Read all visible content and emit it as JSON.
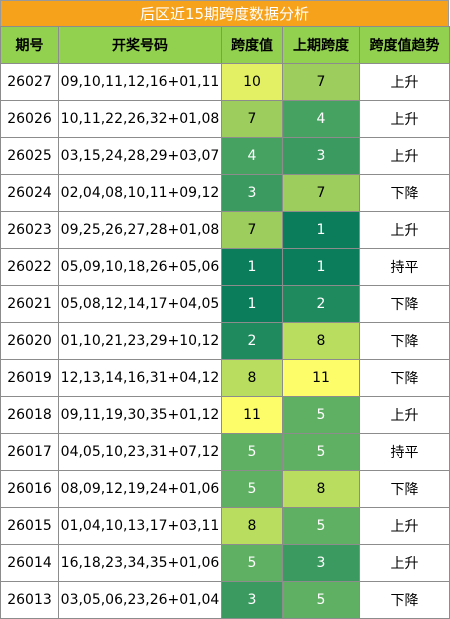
{
  "title": "后区近15期跨度数据分析",
  "headers": [
    "期号",
    "开奖号码",
    "跨度值",
    "上期跨度",
    "跨度值趋势"
  ],
  "rows": [
    {
      "issue": "26027",
      "numbers": "09,10,11,12,16+01,11",
      "span": "10",
      "prev_span": "7",
      "trend": "上升"
    },
    {
      "issue": "26026",
      "numbers": "10,11,22,26,32+01,08",
      "span": "7",
      "prev_span": "4",
      "trend": "上升"
    },
    {
      "issue": "26025",
      "numbers": "03,15,24,28,29+03,07",
      "span": "4",
      "prev_span": "3",
      "trend": "上升"
    },
    {
      "issue": "26024",
      "numbers": "02,04,08,10,11+09,12",
      "span": "3",
      "prev_span": "7",
      "trend": "下降"
    },
    {
      "issue": "26023",
      "numbers": "09,25,26,27,28+01,08",
      "span": "7",
      "prev_span": "1",
      "trend": "上升"
    },
    {
      "issue": "26022",
      "numbers": "05,09,10,18,26+05,06",
      "span": "1",
      "prev_span": "1",
      "trend": "持平"
    },
    {
      "issue": "26021",
      "numbers": "05,08,12,14,17+04,05",
      "span": "1",
      "prev_span": "2",
      "trend": "下降"
    },
    {
      "issue": "26020",
      "numbers": "01,10,21,23,29+10,12",
      "span": "2",
      "prev_span": "8",
      "trend": "下降"
    },
    {
      "issue": "26019",
      "numbers": "12,13,14,16,31+04,12",
      "span": "8",
      "prev_span": "11",
      "trend": "下降"
    },
    {
      "issue": "26018",
      "numbers": "09,11,19,30,35+01,12",
      "span": "11",
      "prev_span": "5",
      "trend": "上升"
    },
    {
      "issue": "26017",
      "numbers": "04,05,10,23,31+07,12",
      "span": "5",
      "prev_span": "5",
      "trend": "持平"
    },
    {
      "issue": "26016",
      "numbers": "08,09,12,19,24+01,06",
      "span": "5",
      "prev_span": "8",
      "trend": "下降"
    },
    {
      "issue": "26015",
      "numbers": "01,04,10,13,17+03,11",
      "span": "8",
      "prev_span": "5",
      "trend": "上升"
    },
    {
      "issue": "26014",
      "numbers": "16,18,23,34,35+01,06",
      "span": "5",
      "prev_span": "3",
      "trend": "上升"
    },
    {
      "issue": "26013",
      "numbers": "03,05,06,23,26+01,04",
      "span": "3",
      "prev_span": "5",
      "trend": "下降"
    }
  ],
  "colors": {
    "title_bg": "#f7a21b",
    "header_bg": "#92d050",
    "span_scale": {
      "1": "#0b7d5b",
      "2": "#1f8a5e",
      "3": "#3a9a60",
      "4": "#45a261",
      "5": "#5fb063",
      "7": "#9dcd5c",
      "8": "#b9dd5e",
      "10": "#e4f063",
      "11": "#fdfd6a"
    }
  }
}
